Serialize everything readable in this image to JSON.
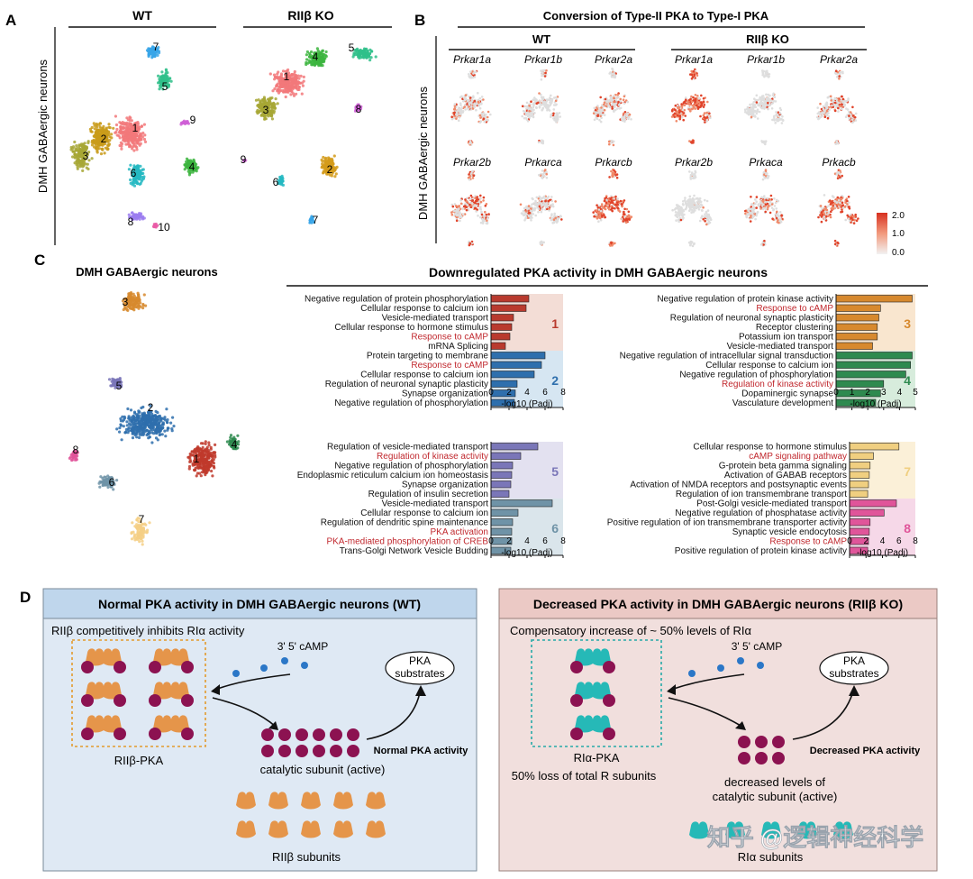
{
  "panelA": {
    "letter": "A",
    "ylabel": "DMH GABAergic neurons",
    "wt_title": "WT",
    "ko_title": "RIIβ KO",
    "wt_clusters": [
      "1",
      "2",
      "3",
      "4",
      "5",
      "6",
      "7",
      "8",
      "9",
      "10"
    ],
    "ko_clusters": [
      "1",
      "2",
      "3",
      "4",
      "5",
      "6",
      "7",
      "8",
      "9"
    ]
  },
  "panelB": {
    "letter": "B",
    "title": "Conversion of Type-II PKA to Type-I PKA",
    "ylabel": "DMH GABAergic neurons",
    "wt_title": "WT",
    "ko_title": "RIIβ KO",
    "genes_row1": [
      "Prkar1a",
      "Prkar1b",
      "Prkar2a"
    ],
    "genes_row2": [
      "Prkar2b",
      "Prkarca",
      "Prkarcb"
    ],
    "ko_genes_row1": [
      "Prkar1a",
      "Prkar1b",
      "Prkar2a"
    ],
    "ko_genes_row2": [
      "Prkar2b",
      "Prkaca",
      "Prkacb"
    ],
    "scale_ticks": [
      "2.0",
      "1.0",
      "0.0"
    ]
  },
  "panelC": {
    "letter": "C",
    "umap_title": "DMH GABAergic neurons",
    "title": "Downregulated PKA activity in DMH GABAergic neurons",
    "xlabel": "-log10 (Padj)",
    "umap_clusters": [
      "1",
      "2",
      "3",
      "4",
      "5",
      "6",
      "7",
      "8"
    ],
    "charts": [
      {
        "id": "c12",
        "xmax": 8,
        "ticks": [
          "0",
          "2",
          "4",
          "6",
          "8"
        ],
        "groups": [
          {
            "label": "1",
            "color": "#b93a2e",
            "bg": "#f3ddd6",
            "terms": [
              {
                "t": "Negative regulation of protein phosphorylation",
                "v": 4.2,
                "red": false
              },
              {
                "t": "Cellular response to calcium ion",
                "v": 3.9,
                "red": false
              },
              {
                "t": "Vesicle-mediated transport",
                "v": 2.5,
                "red": false
              },
              {
                "t": "Cellular response to hormone stimulus",
                "v": 2.3,
                "red": false
              },
              {
                "t": "Response to cAMP",
                "v": 2.1,
                "red": true
              },
              {
                "t": "mRNA Splicing",
                "v": 1.6,
                "red": false
              }
            ]
          },
          {
            "label": "2",
            "color": "#2e6fad",
            "bg": "#d6e6f2",
            "terms": [
              {
                "t": "Protein targeting to membrane",
                "v": 6.0,
                "red": false
              },
              {
                "t": "Response to cAMP",
                "v": 5.6,
                "red": true
              },
              {
                "t": "Cellular response to calcium ion",
                "v": 4.8,
                "red": false
              },
              {
                "t": "Regulation of neuronal synaptic plasticity",
                "v": 2.9,
                "red": false
              },
              {
                "t": "Synapse organization",
                "v": 2.7,
                "red": false
              },
              {
                "t": "Negative regulation of phosphorylation",
                "v": 2.6,
                "red": false
              }
            ]
          }
        ]
      },
      {
        "id": "c34",
        "xmax": 5,
        "ticks": [
          "0",
          "1",
          "2",
          "3",
          "4",
          "5"
        ],
        "groups": [
          {
            "label": "3",
            "color": "#d7892e",
            "bg": "#f9e6cf",
            "terms": [
              {
                "t": "Negative regulation of protein kinase activity",
                "v": 4.8,
                "red": false
              },
              {
                "t": "Response to cAMP",
                "v": 2.8,
                "red": true
              },
              {
                "t": "Regulation of neuronal synaptic plasticity",
                "v": 2.7,
                "red": false
              },
              {
                "t": "Receptor clustering",
                "v": 2.6,
                "red": false
              },
              {
                "t": "Potassium ion transport",
                "v": 2.6,
                "red": false
              },
              {
                "t": "Vesicle-mediated transport",
                "v": 2.3,
                "red": false
              }
            ]
          },
          {
            "label": "4",
            "color": "#2e8a4f",
            "bg": "#d7ecdc",
            "terms": [
              {
                "t": "Negative regulation of intracellular signal transduction",
                "v": 4.8,
                "red": false
              },
              {
                "t": "Cellular response to calcium ion",
                "v": 4.7,
                "red": false
              },
              {
                "t": "Negative regulation of phosphorylation",
                "v": 4.4,
                "red": false
              },
              {
                "t": "Regulation of kinase activity",
                "v": 3.0,
                "red": true
              },
              {
                "t": "Dopaminergic synapse",
                "v": 2.8,
                "red": false
              },
              {
                "t": "Vasculature development",
                "v": 2.5,
                "red": false
              }
            ]
          }
        ]
      },
      {
        "id": "c56",
        "xmax": 8,
        "ticks": [
          "0",
          "2",
          "4",
          "6",
          "8"
        ],
        "groups": [
          {
            "label": "5",
            "color": "#7a76b8",
            "bg": "#e3e1f0",
            "terms": [
              {
                "t": "Regulation of vesicle-mediated transport",
                "v": 5.2,
                "red": false
              },
              {
                "t": "Regulation of kinase activity",
                "v": 3.3,
                "red": true
              },
              {
                "t": "Negative regulation of phosphorylation",
                "v": 2.4,
                "red": false
              },
              {
                "t": "Endoplasmic reticulum calcium ion homeostasis",
                "v": 2.3,
                "red": false
              },
              {
                "t": "Synapse organization",
                "v": 2.2,
                "red": false
              },
              {
                "t": "Regulation of insulin secretion",
                "v": 2.0,
                "red": false
              }
            ]
          },
          {
            "label": "6",
            "color": "#6f93a7",
            "bg": "#dae5eb",
            "terms": [
              {
                "t": "Vesicle-mediated transport",
                "v": 6.8,
                "red": false
              },
              {
                "t": "Cellular response to calcium ion",
                "v": 3.0,
                "red": false
              },
              {
                "t": "Regulation of dendritic spine maintenance",
                "v": 2.4,
                "red": false
              },
              {
                "t": "PKA activation",
                "v": 2.3,
                "red": true
              },
              {
                "t": "PKA-mediated phosphorylation of CREB",
                "v": 2.3,
                "red": true
              },
              {
                "t": "Trans-Golgi Network Vesicle Budding",
                "v": 2.2,
                "red": false
              }
            ]
          }
        ]
      },
      {
        "id": "c78",
        "xmax": 8,
        "ticks": [
          "0",
          "2",
          "4",
          "6",
          "8"
        ],
        "groups": [
          {
            "label": "7",
            "color": "#f0cf80",
            "bg": "#fbf0d8",
            "terms": [
              {
                "t": "Cellular response to hormone stimulus",
                "v": 6.0,
                "red": false
              },
              {
                "t": "cAMP signaling pathway",
                "v": 2.9,
                "red": true
              },
              {
                "t": "G-protein beta gamma signaling",
                "v": 2.5,
                "red": false
              },
              {
                "t": "Activation of GABAB receptors",
                "v": 2.4,
                "red": false
              },
              {
                "t": "Activation of NMDA receptors and postsynaptic events",
                "v": 2.3,
                "red": false
              },
              {
                "t": "Regulation of ion transmembrane transport",
                "v": 2.2,
                "red": false
              }
            ]
          },
          {
            "label": "8",
            "color": "#e0559a",
            "bg": "#f6d8e8",
            "terms": [
              {
                "t": "Post-Golgi vesicle-mediated transport",
                "v": 5.7,
                "red": false
              },
              {
                "t": "Negative regulation of phosphatase activity",
                "v": 4.2,
                "red": false
              },
              {
                "t": "Positive regulation of ion transmembrane transporter activity",
                "v": 2.5,
                "red": false
              },
              {
                "t": "Synaptic vesicle endocytosis",
                "v": 2.4,
                "red": false
              },
              {
                "t": "Response to cAMP",
                "v": 2.3,
                "red": true
              },
              {
                "t": "Positive regulation of protein kinase activity",
                "v": 2.2,
                "red": false
              }
            ]
          }
        ]
      }
    ]
  },
  "panelD": {
    "letter": "D",
    "wt_title": "Normal PKA activity in DMH GABAergic neurons (WT)",
    "wt_subtitle": "RIIβ competitively inhibits RIα activity",
    "wt_camp": "3' 5' cAMP",
    "wt_pka_substrates_1": "PKA",
    "wt_pka_substrates_2": "substrates",
    "wt_complex_label": "RIIβ-PKA",
    "wt_catalytic_label": "catalytic subunit (active)",
    "wt_activity": "Normal PKA activity",
    "wt_subunits_label": "RIIβ subunits",
    "ko_title": "Decreased PKA activity in DMH GABAergic neurons (RIIβ KO)",
    "ko_subtitle": "Compensatory increase of ~ 50% levels of RIα",
    "ko_camp": "3' 5' cAMP",
    "ko_pka_substrates_1": "PKA",
    "ko_pka_substrates_2": "substrates",
    "ko_complex_label": "RIα-PKA",
    "ko_loss_label": "50% loss of total R subunits",
    "ko_catalytic_label_1": "decreased levels of",
    "ko_catalytic_label_2": "catalytic subunit (active)",
    "ko_activity": "Decreased PKA activity",
    "ko_subunits_label": "RIα subunits"
  },
  "watermark": "知乎 @逻辑神经科学",
  "colors": {
    "wt_panel_bg": "#dfe9f4",
    "wt_header_bg": "#bfd6ec",
    "ko_panel_bg": "#f1dfdd",
    "ko_header_bg": "#ebc9c5",
    "riib": "#e5954a",
    "ria": "#26b9b7",
    "catalytic": "#8c1251",
    "camp": "#2b77c7",
    "highlight_text": "#c0272d"
  }
}
